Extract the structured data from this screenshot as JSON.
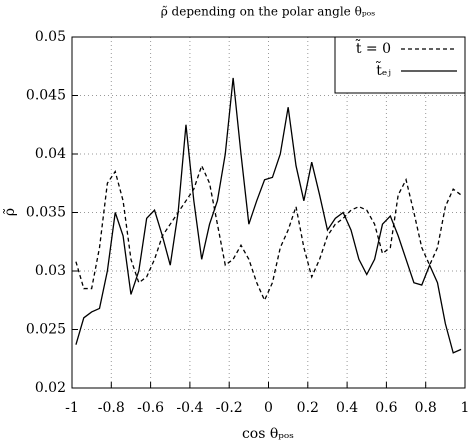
{
  "chart_data": {
    "type": "line",
    "title": "ρ̃ depending on the polar angle θₚₒₛ",
    "x_label": "cos θₚₒₛ",
    "y_label": "ρ̃",
    "x": [
      -0.98,
      -0.94,
      -0.9,
      -0.86,
      -0.82,
      -0.78,
      -0.74,
      -0.7,
      -0.66,
      -0.62,
      -0.58,
      -0.54,
      -0.5,
      -0.46,
      -0.42,
      -0.38,
      -0.34,
      -0.3,
      -0.26,
      -0.22,
      -0.18,
      -0.14,
      -0.1,
      -0.06,
      -0.02,
      0.02,
      0.06,
      0.1,
      0.14,
      0.18,
      0.22,
      0.26,
      0.3,
      0.34,
      0.38,
      0.42,
      0.46,
      0.5,
      0.54,
      0.58,
      0.62,
      0.66,
      0.7,
      0.74,
      0.78,
      0.82,
      0.86,
      0.9,
      0.94,
      0.98
    ],
    "series": [
      {
        "name": "t̃ = 0",
        "color": "#000000",
        "dash": true,
        "values": [
          0.0308,
          0.0285,
          0.0285,
          0.032,
          0.0375,
          0.0385,
          0.036,
          0.031,
          0.029,
          0.0295,
          0.031,
          0.033,
          0.034,
          0.035,
          0.036,
          0.037,
          0.039,
          0.0375,
          0.034,
          0.0305,
          0.031,
          0.0322,
          0.031,
          0.029,
          0.0275,
          0.029,
          0.032,
          0.0335,
          0.0355,
          0.032,
          0.0295,
          0.031,
          0.033,
          0.034,
          0.0345,
          0.0352,
          0.0355,
          0.0352,
          0.034,
          0.0315,
          0.032,
          0.0365,
          0.0378,
          0.035,
          0.032,
          0.0305,
          0.032,
          0.0355,
          0.037,
          0.0365
        ]
      },
      {
        "name": "t̃ₑⱼ",
        "color": "#000000",
        "dash": false,
        "values": [
          0.0237,
          0.026,
          0.0265,
          0.0268,
          0.03,
          0.035,
          0.033,
          0.028,
          0.03,
          0.0345,
          0.0352,
          0.033,
          0.0305,
          0.035,
          0.0425,
          0.036,
          0.031,
          0.034,
          0.036,
          0.04,
          0.0465,
          0.04,
          0.034,
          0.036,
          0.0378,
          0.038,
          0.04,
          0.044,
          0.039,
          0.036,
          0.0393,
          0.0365,
          0.0335,
          0.0345,
          0.035,
          0.0335,
          0.031,
          0.0297,
          0.031,
          0.034,
          0.0347,
          0.033,
          0.031,
          0.029,
          0.0288,
          0.0305,
          0.029,
          0.0255,
          0.023,
          0.0233
        ]
      }
    ],
    "xlim": [
      -1,
      1
    ],
    "xticks": [
      -1,
      -0.8,
      -0.6,
      -0.4,
      -0.2,
      0,
      0.2,
      0.4,
      0.6,
      0.8,
      1
    ],
    "ylim": [
      0.02,
      0.05
    ],
    "yticks": [
      0.02,
      0.025,
      0.03,
      0.035,
      0.04,
      0.045,
      0.05
    ],
    "grid": true,
    "legend": "upper right"
  }
}
